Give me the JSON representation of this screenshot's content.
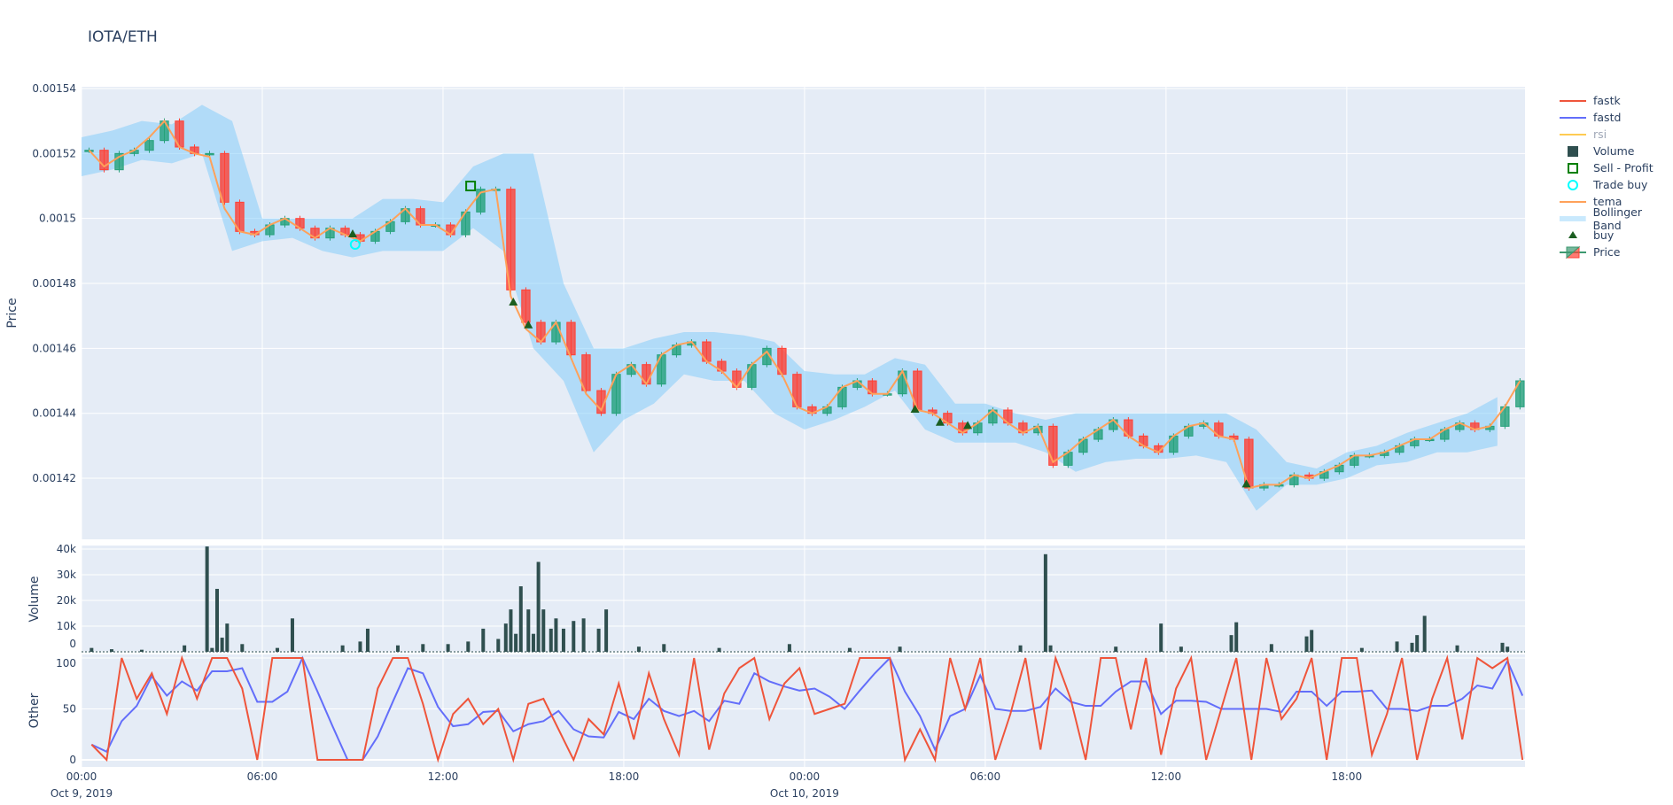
{
  "title": "IOTA/ETH",
  "legend": [
    {
      "name": "fastk",
      "type": "line",
      "color": "#EF553B"
    },
    {
      "name": "fastd",
      "type": "line",
      "color": "#636EFA"
    },
    {
      "name": "rsi",
      "type": "line",
      "color": "#FECB52",
      "hidden": true
    },
    {
      "name": "Volume",
      "type": "square",
      "color": "#2F4F4F"
    },
    {
      "name": "Sell - Profit",
      "type": "open-square",
      "color": "#008000"
    },
    {
      "name": "Trade buy",
      "type": "open-circle",
      "color": "#00FFFF"
    },
    {
      "name": "tema",
      "type": "line",
      "color": "#FFA15A"
    },
    {
      "name": "Bollinger Band",
      "type": "band",
      "color": "#87CEFA"
    },
    {
      "name": "buy",
      "type": "triangle",
      "color": "#1B5E20"
    },
    {
      "name": "Price",
      "type": "candle",
      "color": "#3D9970"
    }
  ],
  "chart_data": {
    "type": "candlestick",
    "colors": {
      "increasing": "#26A17B",
      "decreasing": "#FF4136",
      "band": "#87CEFA",
      "volume": "#2F4F4F",
      "tema": "#FFA15A",
      "fastk": "#EF553B",
      "fastd": "#636EFA",
      "plot_bg": "#E5ECF6",
      "grid": "#FFFFFF"
    },
    "x_range": [
      "2019-10-09T00:00",
      "2019-10-10T23:55"
    ],
    "x_ticks": [
      {
        "t": "2019-10-09T00:00",
        "label": "00:00",
        "sub": "Oct 9, 2019"
      },
      {
        "t": "2019-10-09T06:00",
        "label": "06:00",
        "sub": ""
      },
      {
        "t": "2019-10-09T12:00",
        "label": "12:00",
        "sub": ""
      },
      {
        "t": "2019-10-09T18:00",
        "label": "18:00",
        "sub": ""
      },
      {
        "t": "2019-10-10T00:00",
        "label": "00:00",
        "sub": "Oct 10, 2019"
      },
      {
        "t": "2019-10-10T06:00",
        "label": "06:00",
        "sub": ""
      },
      {
        "t": "2019-10-10T12:00",
        "label": "12:00",
        "sub": ""
      },
      {
        "t": "2019-10-10T18:00",
        "label": "18:00",
        "sub": ""
      }
    ],
    "price": {
      "ylabel": "Price",
      "y_ticks": [
        "0.00154",
        "0.00152",
        "0.0015",
        "0.00148",
        "0.00146",
        "0.00144",
        "0.00142"
      ],
      "start": "2019-10-09T00:00",
      "interval_minutes": 30,
      "close": [
        0.001521,
        0.001515,
        0.00152,
        0.001521,
        0.001524,
        0.00153,
        0.001522,
        0.00152,
        0.00152,
        0.001505,
        0.001496,
        0.001495,
        0.001498,
        0.0015,
        0.001497,
        0.001494,
        0.001497,
        0.001495,
        0.001493,
        0.001496,
        0.001499,
        0.001503,
        0.001498,
        0.001498,
        0.001495,
        0.001502,
        0.001509,
        0.001509,
        0.001478,
        0.001468,
        0.001462,
        0.001468,
        0.001458,
        0.001447,
        0.00144,
        0.001452,
        0.001455,
        0.001449,
        0.001458,
        0.001461,
        0.001462,
        0.001456,
        0.001453,
        0.001448,
        0.001455,
        0.00146,
        0.001452,
        0.001442,
        0.00144,
        0.001442,
        0.001448,
        0.00145,
        0.001446,
        0.001446,
        0.001453,
        0.001441,
        0.00144,
        0.001437,
        0.001434,
        0.001437,
        0.001441,
        0.001437,
        0.001434,
        0.001436,
        0.001424,
        0.001428,
        0.001432,
        0.001435,
        0.001438,
        0.001433,
        0.00143,
        0.001428,
        0.001433,
        0.001436,
        0.001437,
        0.001433,
        0.001432,
        0.001417,
        0.001418,
        0.001418,
        0.001421,
        0.00142,
        0.001422,
        0.001424,
        0.001427,
        0.001427,
        0.001428,
        0.00143,
        0.001432,
        0.001432,
        0.001435,
        0.001437,
        0.001435,
        0.001436,
        0.001442,
        0.00145
      ],
      "tema": [
        0.001521,
        0.001516,
        0.001519,
        0.001521,
        0.001525,
        0.00153,
        0.001522,
        0.00152,
        0.001519,
        0.001503,
        0.001496,
        0.001495,
        0.001498,
        0.0015,
        0.001497,
        0.001494,
        0.001497,
        0.001495,
        0.001493,
        0.001496,
        0.001499,
        0.001503,
        0.001498,
        0.001498,
        0.001495,
        0.001502,
        0.001508,
        0.001509,
        0.001476,
        0.001466,
        0.001462,
        0.001468,
        0.001457,
        0.001446,
        0.001441,
        0.001452,
        0.001455,
        0.001449,
        0.001458,
        0.001461,
        0.001462,
        0.001456,
        0.001453,
        0.001448,
        0.001455,
        0.001459,
        0.001452,
        0.001442,
        0.00144,
        0.001442,
        0.001448,
        0.00145,
        0.001446,
        0.001446,
        0.001453,
        0.001441,
        0.00144,
        0.001437,
        0.001434,
        0.001437,
        0.001441,
        0.001437,
        0.001434,
        0.001436,
        0.001425,
        0.001428,
        0.001432,
        0.001435,
        0.001438,
        0.001433,
        0.00143,
        0.001428,
        0.001433,
        0.001436,
        0.001437,
        0.001433,
        0.001432,
        0.001417,
        0.001418,
        0.001418,
        0.001421,
        0.00142,
        0.001422,
        0.001424,
        0.001427,
        0.001427,
        0.001428,
        0.00143,
        0.001432,
        0.001432,
        0.001435,
        0.001437,
        0.001435,
        0.001436,
        0.001442,
        0.00145
      ],
      "bb_interval_minutes": 60,
      "bb_upper": [
        0.001525,
        0.001527,
        0.00153,
        0.001529,
        0.001535,
        0.00153,
        0.0015,
        0.0015,
        0.0015,
        0.0015,
        0.001506,
        0.001506,
        0.001505,
        0.001516,
        0.00152,
        0.00152,
        0.00148,
        0.00146,
        0.00146,
        0.001463,
        0.001465,
        0.001465,
        0.001464,
        0.001462,
        0.001453,
        0.001452,
        0.001452,
        0.001457,
        0.001455,
        0.001443,
        0.001443,
        0.00144,
        0.001438,
        0.00144,
        0.00144,
        0.00144,
        0.00144,
        0.00144,
        0.00144,
        0.001435,
        0.001425,
        0.001423,
        0.001428,
        0.00143,
        0.001434,
        0.001437,
        0.00144,
        0.001445
      ],
      "bb_lower": [
        0.001513,
        0.001515,
        0.001518,
        0.001517,
        0.00152,
        0.00149,
        0.001493,
        0.001494,
        0.00149,
        0.001488,
        0.00149,
        0.00149,
        0.00149,
        0.001497,
        0.00149,
        0.00146,
        0.00145,
        0.001428,
        0.001438,
        0.001443,
        0.001452,
        0.00145,
        0.00145,
        0.00144,
        0.001435,
        0.001438,
        0.001442,
        0.001447,
        0.001435,
        0.001431,
        0.001431,
        0.001431,
        0.001428,
        0.001422,
        0.001425,
        0.001426,
        0.001426,
        0.001427,
        0.001425,
        0.00141,
        0.001418,
        0.001418,
        0.00142,
        0.001424,
        0.001425,
        0.001428,
        0.001428,
        0.00143
      ],
      "buy": [
        [
          "2019-10-09T09:00",
          0.001495
        ],
        [
          "2019-10-09T14:20",
          0.001474
        ],
        [
          "2019-10-09T14:50",
          0.001467
        ],
        [
          "2019-10-10T03:40",
          0.001441
        ],
        [
          "2019-10-10T04:30",
          0.001437
        ],
        [
          "2019-10-10T05:25",
          0.001436
        ],
        [
          "2019-10-10T14:40",
          0.001418
        ]
      ],
      "trade_buy": [
        [
          "2019-10-09T09:05",
          0.001492
        ]
      ],
      "sell_profit": [
        [
          "2019-10-09T12:55",
          0.00151
        ]
      ]
    },
    "volume": {
      "ylabel": "Volume",
      "y_ticks": [
        {
          "v": 0,
          "label": "0"
        },
        {
          "v": 10000,
          "label": "10k"
        },
        {
          "v": 20000,
          "label": "20k"
        },
        {
          "v": 30000,
          "label": "30k"
        },
        {
          "v": 40000,
          "label": "40k"
        }
      ],
      "bars": [
        [
          "2019-10-09T00:20",
          1500
        ],
        [
          "2019-10-09T01:00",
          1000
        ],
        [
          "2019-10-09T02:00",
          800
        ],
        [
          "2019-10-09T03:25",
          2500
        ],
        [
          "2019-10-09T04:10",
          41000
        ],
        [
          "2019-10-09T04:20",
          1500
        ],
        [
          "2019-10-09T04:30",
          24500
        ],
        [
          "2019-10-09T04:40",
          5500
        ],
        [
          "2019-10-09T04:50",
          11000
        ],
        [
          "2019-10-09T05:20",
          3000
        ],
        [
          "2019-10-09T06:30",
          1500
        ],
        [
          "2019-10-09T07:00",
          13000
        ],
        [
          "2019-10-09T08:40",
          2500
        ],
        [
          "2019-10-09T09:15",
          4000
        ],
        [
          "2019-10-09T09:30",
          9000
        ],
        [
          "2019-10-09T10:30",
          2500
        ],
        [
          "2019-10-09T11:20",
          3000
        ],
        [
          "2019-10-09T12:10",
          3000
        ],
        [
          "2019-10-09T12:50",
          4000
        ],
        [
          "2019-10-09T13:20",
          9000
        ],
        [
          "2019-10-09T13:50",
          5000
        ],
        [
          "2019-10-09T14:05",
          11000
        ],
        [
          "2019-10-09T14:15",
          16500
        ],
        [
          "2019-10-09T14:25",
          7000
        ],
        [
          "2019-10-09T14:35",
          25500
        ],
        [
          "2019-10-09T14:50",
          16500
        ],
        [
          "2019-10-09T15:00",
          7000
        ],
        [
          "2019-10-09T15:10",
          35000
        ],
        [
          "2019-10-09T15:20",
          16500
        ],
        [
          "2019-10-09T15:35",
          9000
        ],
        [
          "2019-10-09T15:45",
          13000
        ],
        [
          "2019-10-09T16:00",
          9000
        ],
        [
          "2019-10-09T16:20",
          12000
        ],
        [
          "2019-10-09T16:40",
          13000
        ],
        [
          "2019-10-09T17:10",
          9000
        ],
        [
          "2019-10-09T17:25",
          16500
        ],
        [
          "2019-10-09T18:30",
          2000
        ],
        [
          "2019-10-09T19:20",
          3000
        ],
        [
          "2019-10-09T21:10",
          1500
        ],
        [
          "2019-10-09T23:30",
          3000
        ],
        [
          "2019-10-10T01:30",
          1500
        ],
        [
          "2019-10-10T03:10",
          2000
        ],
        [
          "2019-10-10T07:10",
          2500
        ],
        [
          "2019-10-10T08:00",
          38000
        ],
        [
          "2019-10-10T08:10",
          2500
        ],
        [
          "2019-10-10T10:20",
          2000
        ],
        [
          "2019-10-10T11:50",
          11000
        ],
        [
          "2019-10-10T12:30",
          2000
        ],
        [
          "2019-10-10T14:10",
          6500
        ],
        [
          "2019-10-10T14:20",
          11500
        ],
        [
          "2019-10-10T15:30",
          3000
        ],
        [
          "2019-10-10T16:40",
          6000
        ],
        [
          "2019-10-10T16:50",
          8500
        ],
        [
          "2019-10-10T18:30",
          1500
        ],
        [
          "2019-10-10T19:40",
          4000
        ],
        [
          "2019-10-10T20:10",
          3500
        ],
        [
          "2019-10-10T20:20",
          6500
        ],
        [
          "2019-10-10T20:35",
          14000
        ],
        [
          "2019-10-10T21:40",
          2500
        ],
        [
          "2019-10-10T23:10",
          3500
        ],
        [
          "2019-10-10T23:20",
          2000
        ]
      ]
    },
    "other": {
      "ylabel": "Other",
      "y_ticks": [
        {
          "v": 0,
          "label": "0"
        },
        {
          "v": 50,
          "label": "50"
        },
        {
          "v": 100,
          "label": "100"
        }
      ],
      "start": "2019-10-09T00:20",
      "interval_minutes": 30,
      "fastk": [
        15,
        0,
        100,
        60,
        85,
        45,
        100,
        60,
        100,
        100,
        70,
        0,
        100,
        100,
        100,
        0,
        0,
        0,
        0,
        70,
        100,
        100,
        55,
        0,
        45,
        60,
        35,
        50,
        0,
        55,
        60,
        30,
        0,
        40,
        25,
        75,
        20,
        85,
        40,
        5,
        100,
        10,
        65,
        90,
        100,
        40,
        75,
        90,
        45,
        50,
        55,
        100,
        100,
        100,
        0,
        30,
        0,
        100,
        50,
        100,
        0,
        45,
        100,
        10,
        100,
        60,
        0,
        100,
        100,
        30,
        100,
        5,
        70,
        100,
        0,
        50,
        100,
        0,
        100,
        40,
        60,
        100,
        0,
        100,
        100,
        5,
        45,
        100,
        0,
        60,
        100,
        20,
        100,
        90,
        100,
        0
      ],
      "fastd": [
        15,
        8,
        38,
        53,
        82,
        63,
        77,
        68,
        87,
        87,
        90,
        57,
        57,
        67,
        100,
        67,
        33,
        0,
        0,
        23,
        57,
        90,
        85,
        52,
        33,
        35,
        47,
        48,
        28,
        35,
        38,
        48,
        30,
        23,
        22,
        47,
        40,
        60,
        48,
        43,
        48,
        38,
        58,
        55,
        85,
        77,
        72,
        68,
        70,
        62,
        50,
        68,
        85,
        100,
        67,
        43,
        10,
        43,
        50,
        83,
        50,
        48,
        48,
        52,
        70,
        57,
        53,
        53,
        67,
        77,
        77,
        45,
        58,
        58,
        57,
        50,
        50,
        50,
        50,
        47,
        67,
        67,
        53,
        67,
        67,
        68,
        50,
        50,
        48,
        53,
        53,
        60,
        73,
        70,
        97,
        63
      ]
    }
  }
}
